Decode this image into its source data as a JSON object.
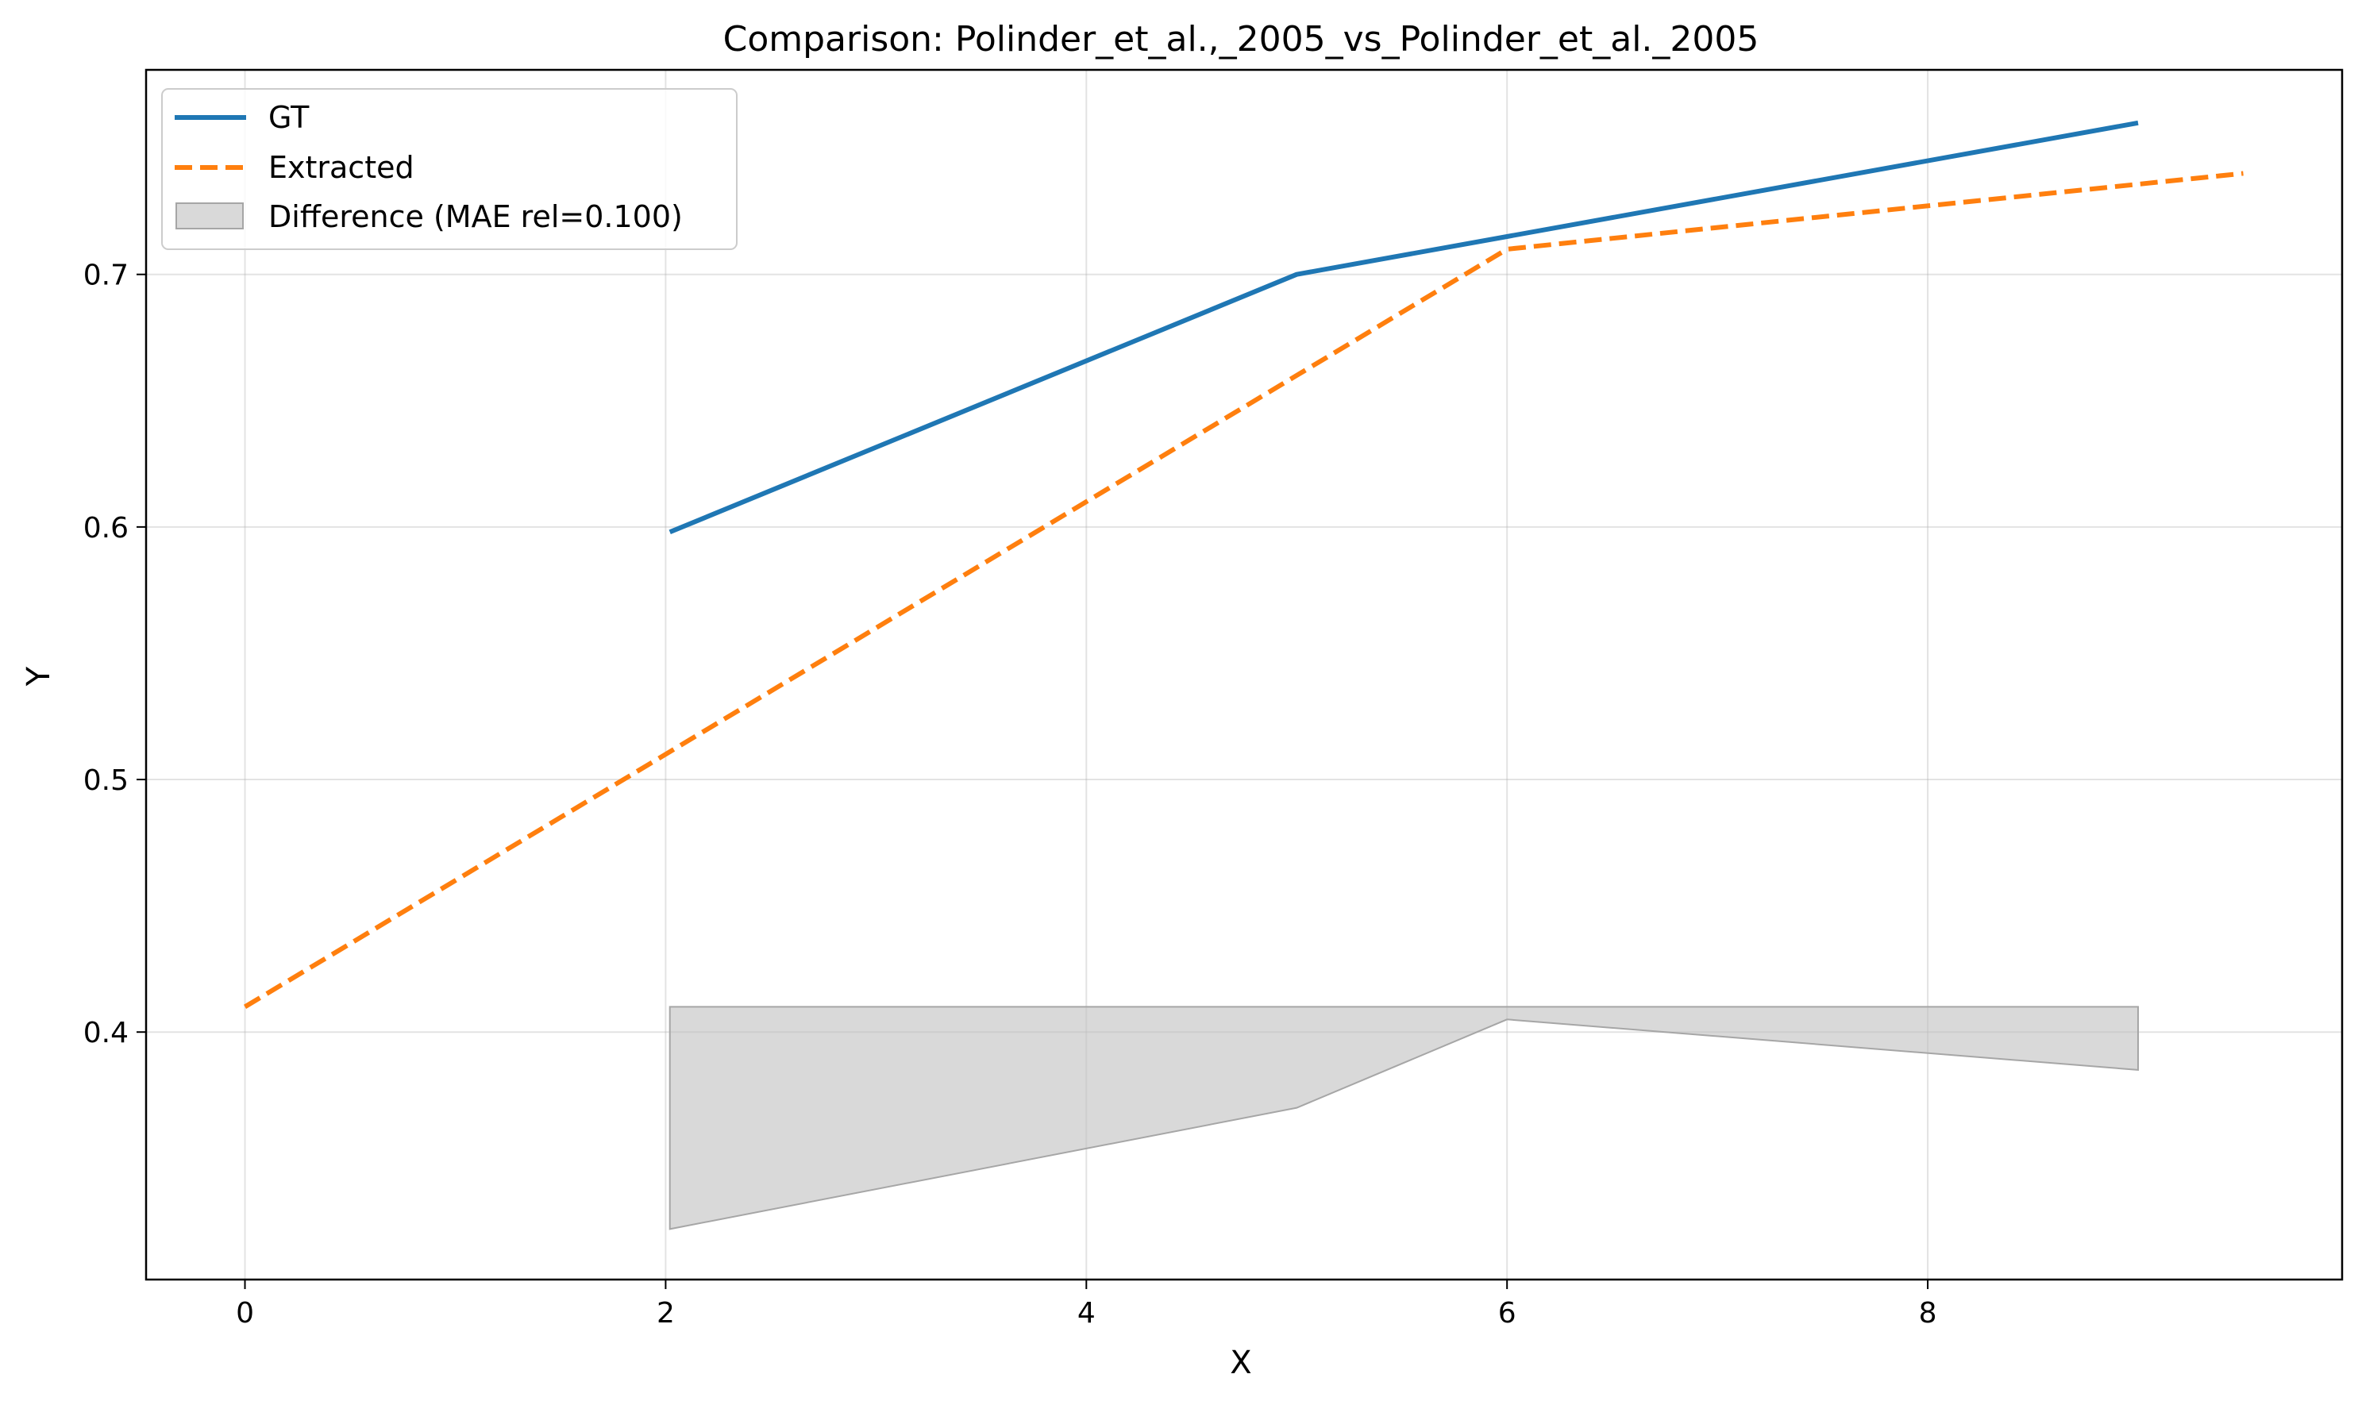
{
  "chart_data": {
    "type": "line",
    "title": "Comparison: Polinder_et_al.,_2005_vs_Polinder_et_al._2005",
    "xlabel": "X",
    "ylabel": "Y",
    "xlim": [
      -0.47,
      9.97
    ],
    "ylim": [
      0.302,
      0.781
    ],
    "xticks": [
      0,
      2,
      4,
      6,
      8
    ],
    "xtick_labels": [
      "0",
      "2",
      "4",
      "6",
      "8"
    ],
    "yticks": [
      0.4,
      0.5,
      0.6,
      0.7
    ],
    "ytick_labels": [
      "0.4",
      "0.5",
      "0.6",
      "0.7"
    ],
    "grid": true,
    "legend_position": "upper-left",
    "series": [
      {
        "name": "GT",
        "style": "solid",
        "color": "#1f77b4",
        "x": [
          2.02,
          5.0,
          6.0,
          9.0
        ],
        "y": [
          0.598,
          0.7,
          0.715,
          0.76
        ]
      },
      {
        "name": "Extracted",
        "style": "dashed",
        "color": "#ff7f0e",
        "x": [
          0.0,
          2.02,
          5.0,
          6.0,
          9.5
        ],
        "y": [
          0.41,
          0.511,
          0.66,
          0.71,
          0.74
        ]
      }
    ],
    "difference_band": {
      "name": "Difference (MAE rel=0.100)",
      "color": "#bfbfbf",
      "x": [
        2.02,
        5.0,
        6.0,
        9.0
      ],
      "upper": [
        0.41,
        0.41,
        0.41,
        0.41
      ],
      "lower": [
        0.322,
        0.37,
        0.405,
        0.385
      ]
    }
  }
}
